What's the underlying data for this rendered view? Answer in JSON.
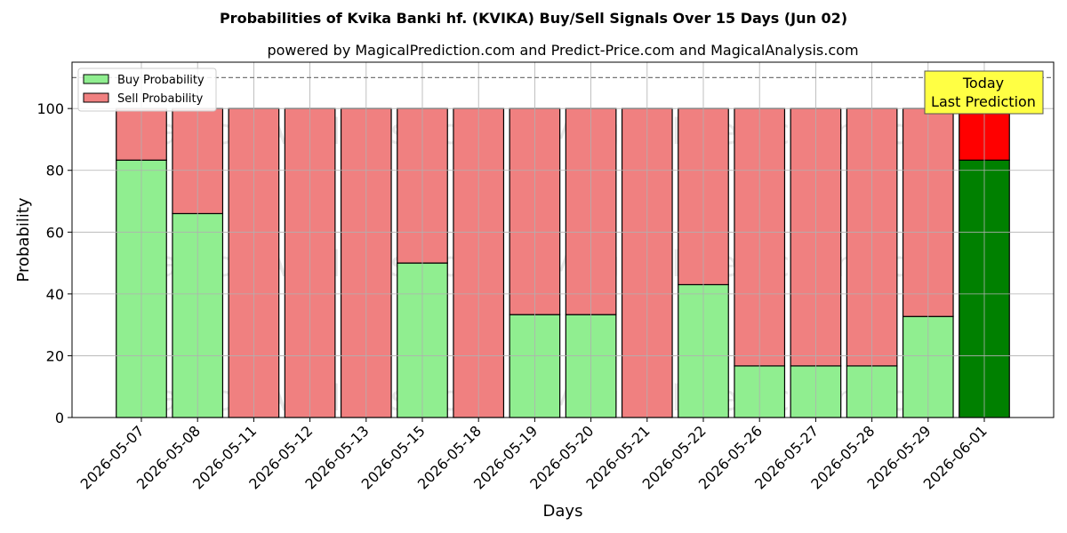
{
  "chart_data": {
    "type": "bar",
    "title": "Probabilities of Kvika Banki hf. (KVIKA) Buy/Sell Signals Over 15 Days (Jun 02)",
    "subtitle": "powered by MagicalPrediction.com and Predict-Price.com and MagicalAnalysis.com",
    "xlabel": "Days",
    "ylabel": "Probability",
    "ylim": [
      0,
      115
    ],
    "yticks": [
      0,
      20,
      40,
      60,
      80,
      100
    ],
    "grid": true,
    "stacked": true,
    "reference_line": 110,
    "legend_position": "top-left",
    "categories": [
      "2026-05-07",
      "2026-05-08",
      "2026-05-11",
      "2026-05-12",
      "2026-05-13",
      "2026-05-15",
      "2026-05-18",
      "2026-05-19",
      "2026-05-20",
      "2026-05-21",
      "2026-05-22",
      "2026-05-26",
      "2026-05-27",
      "2026-05-28",
      "2026-05-29",
      "2026-06-01"
    ],
    "series": [
      {
        "name": "Buy Probability",
        "color": "#90ee90",
        "highlight_color": "#008000",
        "values": [
          83.3,
          66,
          0,
          0,
          0,
          50,
          0,
          33.3,
          33.3,
          0,
          43,
          16.7,
          16.7,
          16.7,
          32.7,
          83.3
        ]
      },
      {
        "name": "Sell Probability",
        "color": "#f08080",
        "highlight_color": "#ff0000",
        "values": [
          16.7,
          34,
          100,
          100,
          100,
          50,
          100,
          66.7,
          66.7,
          100,
          57,
          83.3,
          83.3,
          83.3,
          67.3,
          16.7
        ]
      }
    ],
    "annotation": {
      "text": [
        "Today",
        "Last Prediction"
      ],
      "color": "#ffff44"
    },
    "watermarks": [
      "MagicalAnalysis.com",
      "MagicalPrediction.com"
    ]
  }
}
